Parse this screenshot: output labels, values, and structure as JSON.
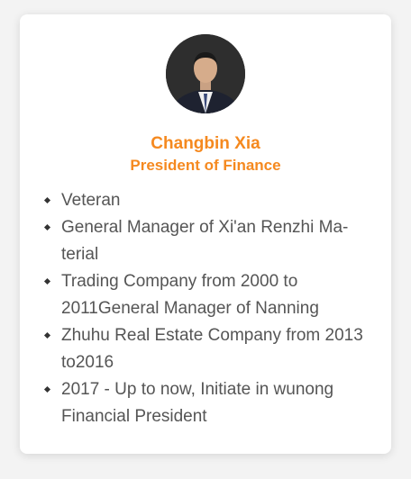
{
  "profile": {
    "name": "Changbin Xia",
    "title": "President of Finance",
    "avatar_icon": "person-portrait-icon"
  },
  "bullets": [
    "Veteran",
    "General Manager of Xi'an Renzhi Ma-terial",
    "Trading Company from 2000 to 2011General Manager of Nanning",
    "Zhuhu Real Estate Company from 2013 to2016",
    "2017 - Up to now, Initiate in wunong Financial President"
  ],
  "colors": {
    "accent": "#f5891f",
    "text": "#555555",
    "background": "#f3f3f3",
    "card": "#ffffff"
  }
}
